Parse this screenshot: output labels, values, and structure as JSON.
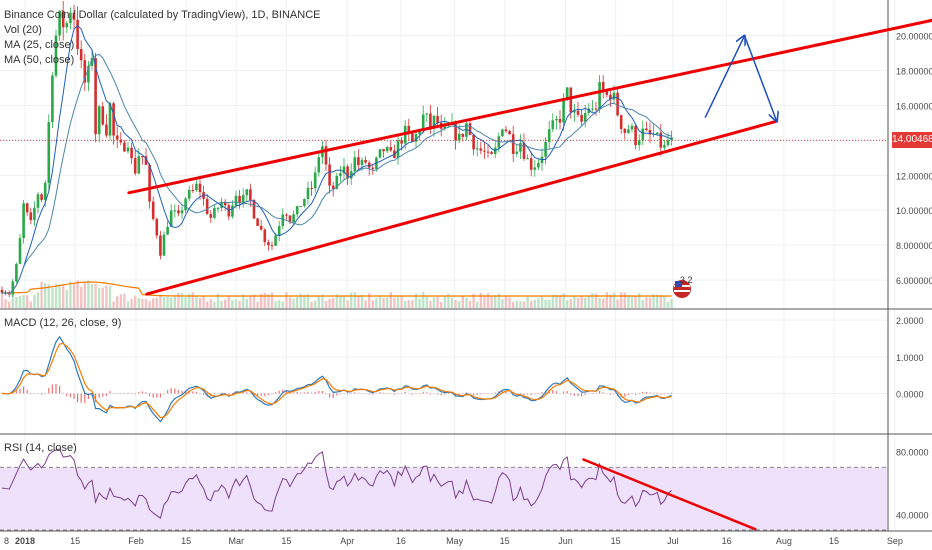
{
  "colors": {
    "up": "#2aa84a",
    "down": "#d32f2f",
    "ma25": "#1f5fb8",
    "ma50": "#4b86a8",
    "vol_ma": "#f57c00",
    "macd_line": "#2e7bbd",
    "signal_line": "#f57c00",
    "hist_pos": "#e57373",
    "hist_neg": "#e57373",
    "rsi_line": "#7b3f8a",
    "rsi_band": "#efe0fb",
    "trend": "#ee0000",
    "projection": "#1f4fbf",
    "price_label": "#e53935",
    "grid": "#eef0f3",
    "axis_text": "#4a4a4a",
    "separator": "#555555"
  },
  "legend": {
    "title": "Binance Coin / Dollar (calculated by TradingView), 1D, BINANCE",
    "vol": "Vol (20)",
    "ma25": "MA (25, close)",
    "ma50": "MA (50, close)",
    "macd": "MACD (12, 26, close, 9)",
    "rsi": "RSI (14, close)"
  },
  "price_label": "14.0046858",
  "event_badge": {
    "count": "3 2",
    "icon": "us-flag-icon"
  },
  "chart_data": {
    "type": "candlestick",
    "title": "Binance Coin / Dollar (calculated by TradingView), 1D, BINANCE",
    "x_ticks": [
      "8",
      "2018",
      "15",
      "Feb",
      "15",
      "Mar",
      "15",
      "Apr",
      "16",
      "May",
      "15",
      "Jun",
      "15",
      "Jul",
      "16",
      "Aug",
      "15",
      "Sep"
    ],
    "price_axis": {
      "ticks": [
        "20.0000000",
        "18.0000000",
        "16.0000000",
        "14.0000000",
        "12.0000000",
        "10.0000000",
        "8.0000000",
        "6.0000000"
      ],
      "current": 14.0046858,
      "range": [
        4.4,
        21.7
      ]
    },
    "macd_axis": {
      "ticks": [
        "2.0000",
        "1.0000",
        "0.0000"
      ],
      "range": [
        -1.05,
        2.25
      ]
    },
    "rsi_axis": {
      "ticks": [
        "80.0000",
        "40.0000"
      ],
      "range": [
        30,
        90
      ],
      "band": [
        30,
        70
      ]
    },
    "price_anchors": [
      [
        0,
        5.5
      ],
      [
        10,
        5.2
      ],
      [
        18,
        7.2
      ],
      [
        24,
        10.5
      ],
      [
        30,
        9.0
      ],
      [
        38,
        11.0
      ],
      [
        44,
        10.5
      ],
      [
        52,
        18.0
      ],
      [
        58,
        21.0
      ],
      [
        66,
        20.5
      ],
      [
        72,
        22.0
      ],
      [
        80,
        18.5
      ],
      [
        86,
        17.0
      ],
      [
        92,
        19.0
      ],
      [
        96,
        14.0
      ],
      [
        100,
        16.0
      ],
      [
        106,
        14.5
      ],
      [
        110,
        16.0
      ],
      [
        114,
        14.0
      ],
      [
        120,
        13.5
      ],
      [
        128,
        14.0
      ],
      [
        134,
        12.0
      ],
      [
        140,
        13.5
      ],
      [
        146,
        12.5
      ],
      [
        150,
        10.0
      ],
      [
        156,
        9.0
      ],
      [
        160,
        7.5
      ],
      [
        166,
        9.0
      ],
      [
        172,
        10.0
      ],
      [
        178,
        9.5
      ],
      [
        186,
        10.8
      ],
      [
        192,
        11.0
      ],
      [
        198,
        11.5
      ],
      [
        204,
        10.5
      ],
      [
        210,
        9.5
      ],
      [
        216,
        10.0
      ],
      [
        222,
        10.5
      ],
      [
        228,
        9.8
      ],
      [
        236,
        11.0
      ],
      [
        242,
        10.5
      ],
      [
        248,
        11.0
      ],
      [
        254,
        9.8
      ],
      [
        260,
        9.0
      ],
      [
        266,
        8.2
      ],
      [
        272,
        8.0
      ],
      [
        278,
        9.0
      ],
      [
        284,
        10.2
      ],
      [
        290,
        9.5
      ],
      [
        296,
        9.8
      ],
      [
        302,
        10.5
      ],
      [
        308,
        11.0
      ],
      [
        314,
        11.5
      ],
      [
        318,
        13.0
      ],
      [
        322,
        13.8
      ],
      [
        326,
        12.5
      ],
      [
        330,
        11.0
      ],
      [
        336,
        11.5
      ],
      [
        342,
        12.5
      ],
      [
        348,
        12.0
      ],
      [
        354,
        13.0
      ],
      [
        360,
        12.5
      ],
      [
        366,
        12.8
      ],
      [
        372,
        12.0
      ],
      [
        378,
        13.0
      ],
      [
        384,
        13.5
      ],
      [
        392,
        13.0
      ],
      [
        400,
        14.0
      ],
      [
        406,
        14.5
      ],
      [
        412,
        13.8
      ],
      [
        418,
        14.5
      ],
      [
        424,
        15.5
      ],
      [
        430,
        14.8
      ],
      [
        436,
        15.3
      ],
      [
        442,
        14.2
      ],
      [
        448,
        14.8
      ],
      [
        454,
        14.5
      ],
      [
        460,
        14.0
      ],
      [
        466,
        15.0
      ],
      [
        472,
        14.0
      ],
      [
        478,
        13.5
      ],
      [
        484,
        13.3
      ],
      [
        490,
        12.8
      ],
      [
        496,
        13.5
      ],
      [
        502,
        15.0
      ],
      [
        508,
        14.5
      ],
      [
        514,
        13.5
      ],
      [
        520,
        14.0
      ],
      [
        526,
        13.0
      ],
      [
        532,
        12.5
      ],
      [
        538,
        12.8
      ],
      [
        544,
        13.5
      ],
      [
        550,
        14.5
      ],
      [
        556,
        15.0
      ],
      [
        562,
        15.5
      ],
      [
        566,
        17.0
      ],
      [
        570,
        16.0
      ],
      [
        576,
        15.2
      ],
      [
        582,
        15.0
      ],
      [
        588,
        16.0
      ],
      [
        594,
        15.5
      ],
      [
        600,
        17.0
      ],
      [
        606,
        16.5
      ],
      [
        612,
        16.8
      ],
      [
        618,
        15.5
      ],
      [
        624,
        14.5
      ],
      [
        630,
        14.8
      ],
      [
        636,
        14.0
      ],
      [
        642,
        14.5
      ],
      [
        648,
        14.2
      ],
      [
        654,
        14.3
      ],
      [
        660,
        13.8
      ],
      [
        664,
        13.5
      ],
      [
        668,
        14.0
      ],
      [
        672,
        13.9
      ]
    ],
    "trend_lines": [
      {
        "name": "channel-upper",
        "from": [
          "2018-01-30",
          11.0
        ],
        "to": [
          "2018-09-30",
          21.7
        ]
      },
      {
        "name": "channel-lower",
        "from": [
          "2018-02-04",
          5.2
        ],
        "to": [
          "2018-07-30",
          15.1
        ]
      }
    ],
    "projection": [
      [
        "2018-07-10",
        15.3
      ],
      [
        "2018-07-21",
        20.0
      ],
      [
        "2018-07-30",
        15.1
      ]
    ],
    "rsi_divergence": {
      "from": [
        "2018-06-06",
        75
      ],
      "to": [
        "2018-07-24",
        30.5
      ]
    }
  }
}
